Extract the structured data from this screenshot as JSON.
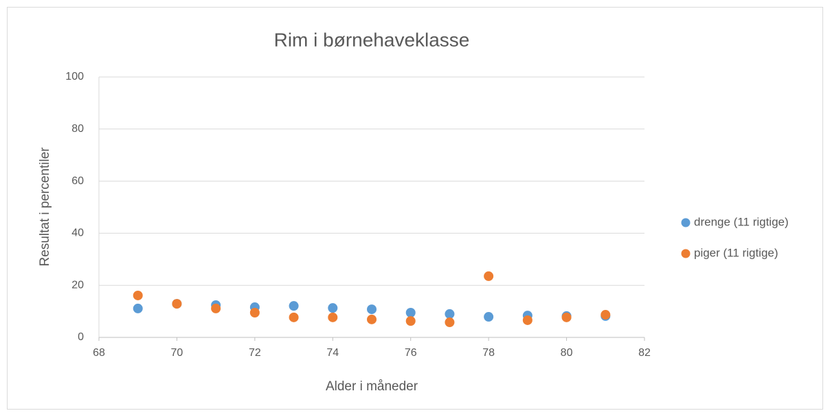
{
  "chart_data": {
    "type": "scatter",
    "title": "Rim i børnehaveklasse",
    "x_label": "Alder i måneder",
    "y_label": "Resultat i percentiler",
    "series": [
      {
        "name": "drenge (11 rigtige)",
        "color": "#5b9bd5",
        "x": [
          69,
          70,
          71,
          72,
          73,
          74,
          75,
          76,
          77,
          78,
          79,
          80,
          81
        ],
        "values": [
          11.1,
          12.9,
          12.4,
          11.6,
          12.1,
          11.3,
          10.8,
          9.5,
          9.0,
          7.9,
          8.4,
          8.2,
          8.2
        ]
      },
      {
        "name": "piger (11 rigtige)",
        "color": "#ed7d31",
        "x": [
          69,
          70,
          71,
          72,
          73,
          74,
          75,
          76,
          77,
          78,
          79,
          80,
          81
        ],
        "values": [
          16.1,
          12.9,
          11.1,
          9.5,
          7.7,
          7.7,
          6.9,
          6.3,
          5.8,
          23.5,
          6.6,
          7.7,
          8.7
        ]
      }
    ],
    "xlim": [
      68,
      82
    ],
    "xticks": [
      68,
      70,
      72,
      74,
      76,
      78,
      80,
      82
    ],
    "ylim": [
      0,
      100
    ],
    "yticks": [
      0,
      20,
      40,
      60,
      80,
      100
    ],
    "grid": true,
    "legend": "right"
  }
}
